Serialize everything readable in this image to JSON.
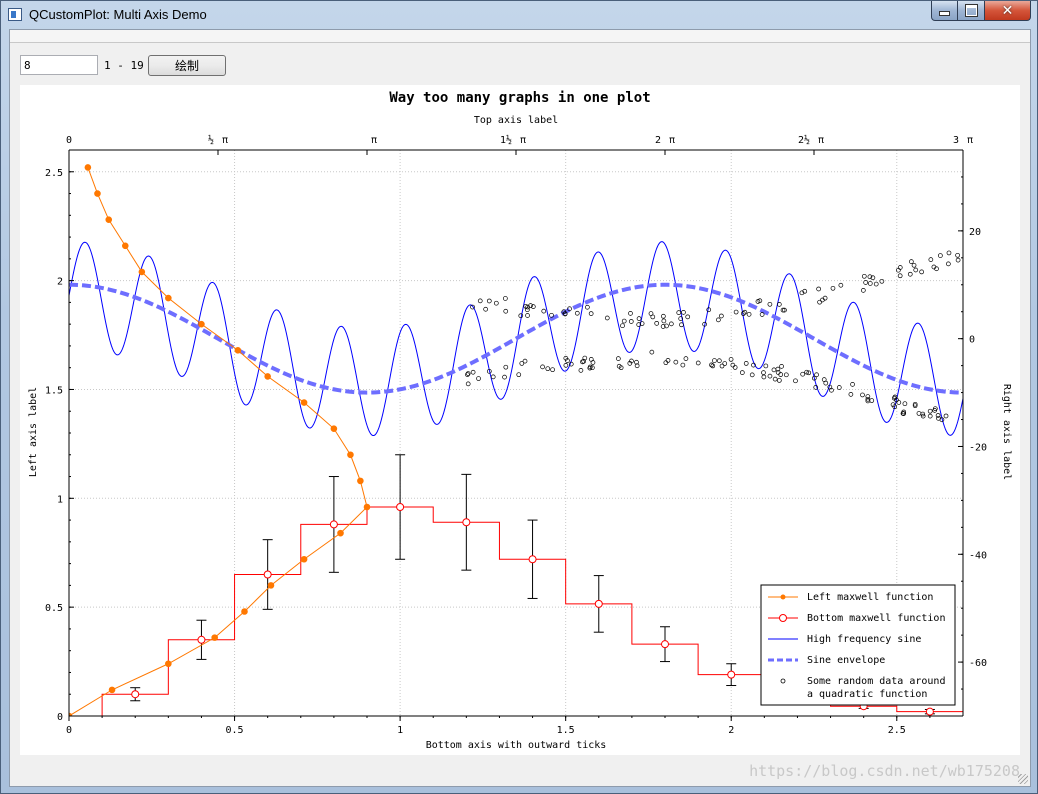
{
  "window": {
    "title": "QCustomPlot: Multi Axis Demo",
    "minimize_icon": "minimize-icon",
    "maximize_icon": "maximize-icon",
    "close_icon": "close-icon"
  },
  "toolbar": {
    "input_value": "8",
    "range_label": "1 - 19",
    "plot_button_label": "绘制"
  },
  "watermark": "https://blog.csdn.net/wb175208",
  "chart_data": {
    "type": "line",
    "title": "Way too many graphs in one plot",
    "xlabel": "Bottom axis with outward ticks",
    "ylabel": "Left axis label",
    "x2label": "Top axis label",
    "y2label": "Right axis label",
    "xlim": [
      0,
      2.7
    ],
    "ylim": [
      0,
      2.6
    ],
    "x2lim": [
      0,
      9.42478
    ],
    "y2lim": [
      -70,
      35
    ],
    "grid": true,
    "legend_position": "bottom-right",
    "bottom_ticks": [
      "0",
      "0.5",
      "1",
      "1.5",
      "2",
      "2.5"
    ],
    "left_ticks": [
      "0",
      "0.5",
      "1",
      "1.5",
      "2",
      "2.5"
    ],
    "right_ticks": [
      "20",
      "0",
      "-20",
      "-40",
      "-60"
    ],
    "top_ticks": [
      {
        "value": 0,
        "label": "0",
        "pi": ""
      },
      {
        "value": 1.5708,
        "label": "½",
        "pi": "π"
      },
      {
        "value": 3.1416,
        "label": "",
        "pi": "π"
      },
      {
        "value": 4.7124,
        "label": "1½",
        "pi": "π"
      },
      {
        "value": 6.2832,
        "label": "2",
        "pi": "π"
      },
      {
        "value": 7.854,
        "label": "2½",
        "pi": "π"
      },
      {
        "value": 9.4248,
        "label": "3",
        "pi": "π"
      }
    ],
    "series": [
      {
        "name": "Left maxwell function",
        "color": "#ff7800",
        "x": [
          2.52,
          2.4,
          2.28,
          2.16,
          2.04,
          1.92,
          1.8,
          1.68,
          1.56,
          1.44,
          1.32,
          1.2,
          1.08,
          0.96,
          0.84,
          0.72,
          0.6,
          0.48,
          0.36,
          0.24,
          0.12,
          0.0
        ],
        "y": [
          0.057,
          0.086,
          0.12,
          0.17,
          0.22,
          0.3,
          0.4,
          0.51,
          0.6,
          0.71,
          0.8,
          0.85,
          0.88,
          0.9,
          0.82,
          0.71,
          0.61,
          0.53,
          0.44,
          0.3,
          0.13,
          0.0
        ]
      },
      {
        "name": "Bottom maxwell function",
        "color": "#ff0000",
        "x": [
          0.2,
          0.4,
          0.6,
          0.8,
          1.0,
          1.2,
          1.4,
          1.6,
          1.8,
          2.0,
          2.2,
          2.4,
          2.6
        ],
        "y": [
          0.1,
          0.35,
          0.65,
          0.88,
          0.96,
          0.89,
          0.72,
          0.515,
          0.33,
          0.19,
          0.1,
          0.045,
          0.02
        ],
        "errors": [
          0.03,
          0.09,
          0.16,
          0.22,
          0.24,
          0.22,
          0.18,
          0.13,
          0.08,
          0.05,
          0.03,
          0.01,
          0.01
        ]
      },
      {
        "name": "High frequency sine",
        "color": "#0000ff"
      },
      {
        "name": "Sine envelope",
        "color": "#6e6eff"
      },
      {
        "name": "Some random data around\na quadratic function",
        "color": "#000000"
      }
    ]
  }
}
